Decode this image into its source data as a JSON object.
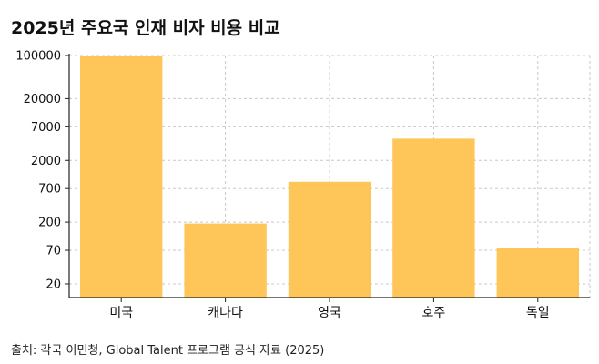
{
  "chart_data": {
    "type": "bar",
    "title": "2025년 주요국 인재 비자 비용 비교",
    "categories": [
      "미국",
      "캐나다",
      "영국",
      "호주",
      "독일"
    ],
    "values": [
      100000,
      190,
      900,
      4500,
      75
    ],
    "yscale": "log",
    "ylim": [
      12,
      100000
    ],
    "yticks": [
      20,
      70,
      200,
      700,
      2000,
      7000,
      20000,
      100000
    ],
    "ytick_labels": [
      "20",
      "70",
      "200",
      "700",
      "2000",
      "7000",
      "20000",
      "100000"
    ],
    "grid": true,
    "bar_color": "#FEC659",
    "xlabel": "",
    "ylabel": ""
  },
  "source": "출처: 각국 이민청, Global Talent 프로그램 공식 자료 (2025)"
}
